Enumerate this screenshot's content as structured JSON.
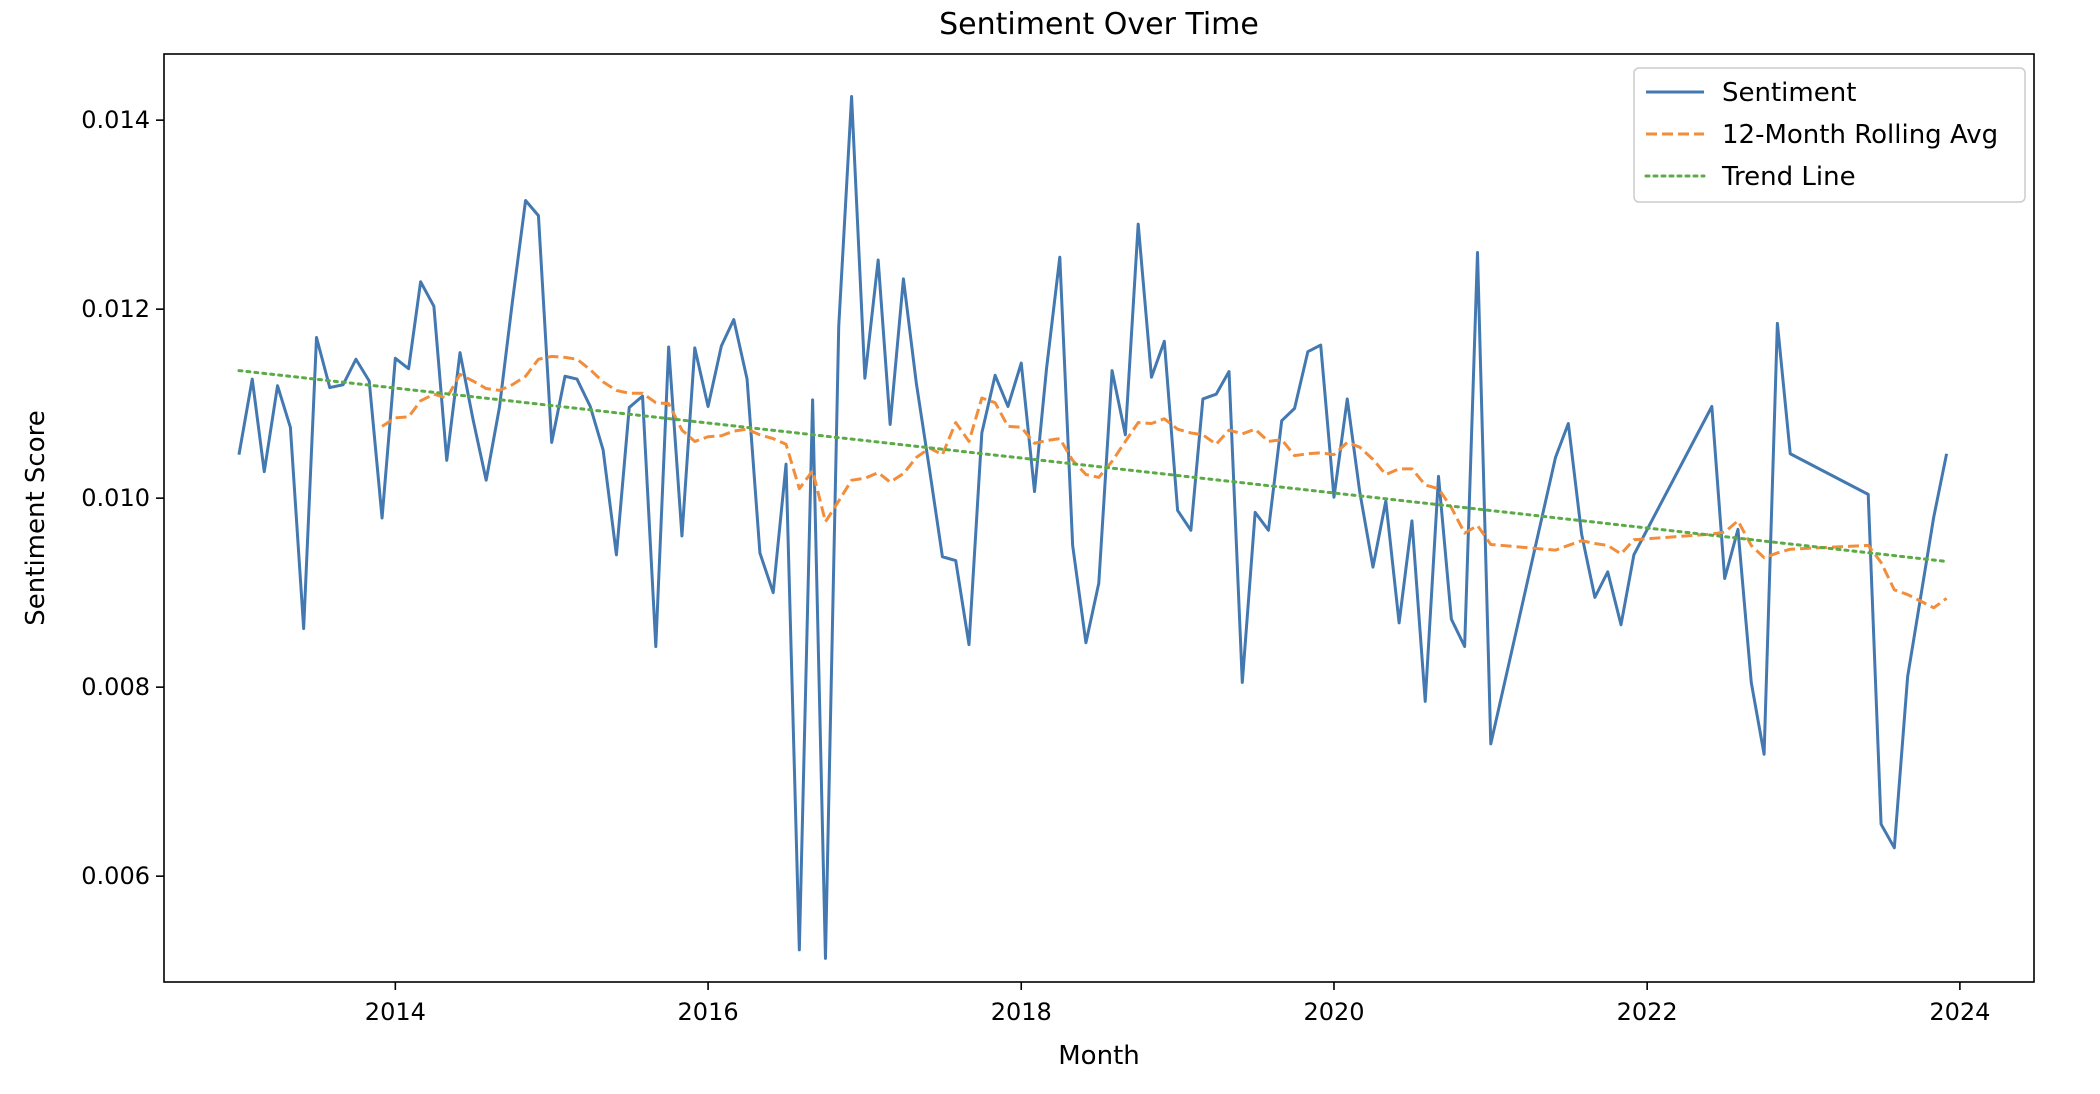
{
  "chart_data": {
    "type": "line",
    "title": "Sentiment Over Time",
    "xlabel": "Month",
    "ylabel": "Sentiment Score",
    "xlim": [
      "2012-07-10",
      "2024-06-22"
    ],
    "ylim": [
      0.00488,
      0.0147
    ],
    "x_ticks": [
      2014,
      2016,
      2018,
      2020,
      2022,
      2024
    ],
    "y_ticks": [
      0.006,
      0.008,
      0.01,
      0.012,
      0.014
    ],
    "y_tick_labels": [
      "0.006",
      "0.008",
      "0.010",
      "0.012",
      "0.014"
    ],
    "grid": false,
    "legend_position": "top-right",
    "colors": {
      "sentiment": "#4379b0",
      "rolling": "#f28e3b",
      "trend": "#5aab45"
    },
    "legend": [
      "Sentiment",
      "12-Month Rolling Avg",
      "Trend Line"
    ],
    "series": [
      {
        "name": "Sentiment",
        "style": "solid",
        "points": [
          [
            "2013-01-01",
            0.01046
          ],
          [
            "2013-02-01",
            0.01126
          ],
          [
            "2013-03-01",
            0.01028
          ],
          [
            "2013-04-01",
            0.01119
          ],
          [
            "2013-05-01",
            0.01075
          ],
          [
            "2013-06-01",
            0.00862
          ],
          [
            "2013-07-01",
            0.0117
          ],
          [
            "2013-08-01",
            0.01117
          ],
          [
            "2013-09-01",
            0.0112
          ],
          [
            "2013-10-01",
            0.01147
          ],
          [
            "2013-11-01",
            0.01124
          ],
          [
            "2013-12-01",
            0.00979
          ],
          [
            "2014-01-01",
            0.01148
          ],
          [
            "2014-02-01",
            0.01137
          ],
          [
            "2014-03-01",
            0.01229
          ],
          [
            "2014-04-01",
            0.01203
          ],
          [
            "2014-05-01",
            0.0104
          ],
          [
            "2014-06-01",
            0.01154
          ],
          [
            "2014-07-01",
            0.01084
          ],
          [
            "2014-08-01",
            0.01019
          ],
          [
            "2014-09-01",
            0.01096
          ],
          [
            "2014-10-01",
            0.01207
          ],
          [
            "2014-11-01",
            0.01315
          ],
          [
            "2014-12-01",
            0.01299
          ],
          [
            "2015-01-01",
            0.01059
          ],
          [
            "2015-02-01",
            0.01129
          ],
          [
            "2015-03-01",
            0.01126
          ],
          [
            "2015-04-01",
            0.01097
          ],
          [
            "2015-05-01",
            0.01051
          ],
          [
            "2015-06-01",
            0.0094
          ],
          [
            "2015-07-01",
            0.01096
          ],
          [
            "2015-08-01",
            0.01108
          ],
          [
            "2015-09-01",
            0.00843
          ],
          [
            "2015-10-01",
            0.0116
          ],
          [
            "2015-11-01",
            0.0096
          ],
          [
            "2015-12-01",
            0.01159
          ],
          [
            "2016-01-01",
            0.01097
          ],
          [
            "2016-02-01",
            0.01161
          ],
          [
            "2016-03-01",
            0.01189
          ],
          [
            "2016-04-01",
            0.01126
          ],
          [
            "2016-05-01",
            0.00942
          ],
          [
            "2016-06-01",
            0.009
          ],
          [
            "2016-07-01",
            0.01036
          ],
          [
            "2016-08-01",
            0.00522
          ],
          [
            "2016-09-01",
            0.01104
          ],
          [
            "2016-10-01",
            0.00513
          ],
          [
            "2016-11-01",
            0.01182
          ],
          [
            "2016-12-01",
            0.01425
          ],
          [
            "2017-01-01",
            0.01127
          ],
          [
            "2017-02-01",
            0.01252
          ],
          [
            "2017-03-01",
            0.01078
          ],
          [
            "2017-04-01",
            0.01232
          ],
          [
            "2017-05-01",
            0.01122
          ],
          [
            "2017-06-01",
            0.0103
          ],
          [
            "2017-07-01",
            0.00938
          ],
          [
            "2017-08-01",
            0.00934
          ],
          [
            "2017-09-01",
            0.00845
          ],
          [
            "2017-10-01",
            0.01069
          ],
          [
            "2017-11-01",
            0.0113
          ],
          [
            "2017-12-01",
            0.01097
          ],
          [
            "2018-01-01",
            0.01143
          ],
          [
            "2018-02-01",
            0.01007
          ],
          [
            "2018-03-01",
            0.01137
          ],
          [
            "2018-04-01",
            0.01255
          ],
          [
            "2018-05-01",
            0.0095
          ],
          [
            "2018-06-01",
            0.00847
          ],
          [
            "2018-07-01",
            0.0091
          ],
          [
            "2018-08-01",
            0.01135
          ],
          [
            "2018-09-01",
            0.01067
          ],
          [
            "2018-10-01",
            0.0129
          ],
          [
            "2018-11-01",
            0.01128
          ],
          [
            "2018-12-01",
            0.01166
          ],
          [
            "2019-01-01",
            0.00987
          ],
          [
            "2019-02-01",
            0.00966
          ],
          [
            "2019-03-01",
            0.01105
          ],
          [
            "2019-04-01",
            0.0111
          ],
          [
            "2019-05-01",
            0.01134
          ],
          [
            "2019-06-01",
            0.00805
          ],
          [
            "2019-07-01",
            0.00985
          ],
          [
            "2019-08-01",
            0.00966
          ],
          [
            "2019-09-01",
            0.01082
          ],
          [
            "2019-10-01",
            0.01095
          ],
          [
            "2019-11-01",
            0.01155
          ],
          [
            "2019-12-01",
            0.01162
          ],
          [
            "2020-01-01",
            0.01001
          ],
          [
            "2020-02-01",
            0.01105
          ],
          [
            "2020-03-01",
            0.01007
          ],
          [
            "2020-04-01",
            0.00927
          ],
          [
            "2020-05-01",
            0.00997
          ],
          [
            "2020-06-01",
            0.00868
          ],
          [
            "2020-07-01",
            0.00976
          ],
          [
            "2020-08-01",
            0.00785
          ],
          [
            "2020-09-01",
            0.01023
          ],
          [
            "2020-10-01",
            0.00872
          ],
          [
            "2020-11-01",
            0.00843
          ],
          [
            "2020-12-01",
            0.0126
          ],
          [
            "2021-01-01",
            0.0074
          ],
          [
            "2021-06-01",
            0.01043
          ],
          [
            "2021-07-01",
            0.01079
          ],
          [
            "2021-08-01",
            0.00962
          ],
          [
            "2021-09-01",
            0.00895
          ],
          [
            "2021-10-01",
            0.00922
          ],
          [
            "2021-11-01",
            0.00866
          ],
          [
            "2021-12-01",
            0.0094
          ],
          [
            "2022-06-01",
            0.01097
          ],
          [
            "2022-07-01",
            0.00915
          ],
          [
            "2022-08-01",
            0.00967
          ],
          [
            "2022-09-01",
            0.00805
          ],
          [
            "2022-10-01",
            0.00729
          ],
          [
            "2022-11-01",
            0.01185
          ],
          [
            "2022-12-01",
            0.01047
          ],
          [
            "2023-06-01",
            0.01004
          ],
          [
            "2023-07-01",
            0.00655
          ],
          [
            "2023-08-01",
            0.0063
          ],
          [
            "2023-09-01",
            0.00811
          ],
          [
            "2023-11-01",
            0.0098
          ],
          [
            "2023-12-01",
            0.01047
          ]
        ]
      },
      {
        "name": "12-Month Rolling Avg",
        "style": "dashed",
        "points": [
          [
            "2013-12-01",
            0.01076
          ],
          [
            "2014-01-01",
            0.01085
          ],
          [
            "2014-02-01",
            0.01086
          ],
          [
            "2014-03-01",
            0.01103
          ],
          [
            "2014-04-01",
            0.0111
          ],
          [
            "2014-05-01",
            0.01106
          ],
          [
            "2014-06-01",
            0.01131
          ],
          [
            "2014-07-01",
            0.01124
          ],
          [
            "2014-08-01",
            0.01116
          ],
          [
            "2014-09-01",
            0.01114
          ],
          [
            "2014-10-01",
            0.0112
          ],
          [
            "2014-11-01",
            0.01129
          ],
          [
            "2014-12-01",
            0.01147
          ],
          [
            "2015-01-01",
            0.0115
          ],
          [
            "2015-02-01",
            0.01149
          ],
          [
            "2015-03-01",
            0.01147
          ],
          [
            "2015-04-01",
            0.01136
          ],
          [
            "2015-05-01",
            0.01123
          ],
          [
            "2015-06-01",
            0.01114
          ],
          [
            "2015-07-01",
            0.01111
          ],
          [
            "2015-08-01",
            0.01111
          ],
          [
            "2015-09-01",
            0.01101
          ],
          [
            "2015-10-01",
            0.011
          ],
          [
            "2015-11-01",
            0.01072
          ],
          [
            "2015-12-01",
            0.0106
          ],
          [
            "2016-01-01",
            0.01065
          ],
          [
            "2016-02-01",
            0.01066
          ],
          [
            "2016-03-01",
            0.01071
          ],
          [
            "2016-04-01",
            0.01073
          ],
          [
            "2016-05-01",
            0.01067
          ],
          [
            "2016-06-01",
            0.01063
          ],
          [
            "2016-07-01",
            0.01057
          ],
          [
            "2016-08-01",
            0.0101
          ],
          [
            "2016-09-01",
            0.01029
          ],
          [
            "2016-10-01",
            0.00975
          ],
          [
            "2016-11-01",
            0.00997
          ],
          [
            "2016-12-01",
            0.01019
          ],
          [
            "2017-01-01",
            0.01021
          ],
          [
            "2017-02-01",
            0.01027
          ],
          [
            "2017-03-01",
            0.01017
          ],
          [
            "2017-04-01",
            0.01026
          ],
          [
            "2017-05-01",
            0.01043
          ],
          [
            "2017-06-01",
            0.01053
          ],
          [
            "2017-07-01",
            0.01046
          ],
          [
            "2017-08-01",
            0.0108
          ],
          [
            "2017-09-01",
            0.0106
          ],
          [
            "2017-10-01",
            0.01106
          ],
          [
            "2017-11-01",
            0.01101
          ],
          [
            "2017-12-01",
            0.01076
          ],
          [
            "2018-01-01",
            0.01075
          ],
          [
            "2018-02-01",
            0.01058
          ],
          [
            "2018-03-01",
            0.01061
          ],
          [
            "2018-04-01",
            0.01063
          ],
          [
            "2018-05-01",
            0.0104
          ],
          [
            "2018-06-01",
            0.01025
          ],
          [
            "2018-07-01",
            0.01022
          ],
          [
            "2018-08-01",
            0.01039
          ],
          [
            "2018-09-01",
            0.0106
          ],
          [
            "2018-10-01",
            0.0108
          ],
          [
            "2018-11-01",
            0.01079
          ],
          [
            "2018-12-01",
            0.01084
          ],
          [
            "2019-01-01",
            0.01073
          ],
          [
            "2019-02-01",
            0.01069
          ],
          [
            "2019-03-01",
            0.01067
          ],
          [
            "2019-04-01",
            0.01057
          ],
          [
            "2019-05-01",
            0.01072
          ],
          [
            "2019-06-01",
            0.01068
          ],
          [
            "2019-07-01",
            0.01073
          ],
          [
            "2019-08-01",
            0.0106
          ],
          [
            "2019-09-01",
            0.01062
          ],
          [
            "2019-10-01",
            0.01045
          ],
          [
            "2019-11-01",
            0.01047
          ],
          [
            "2019-12-01",
            0.01048
          ],
          [
            "2020-01-01",
            0.01046
          ],
          [
            "2020-02-01",
            0.01059
          ],
          [
            "2020-03-01",
            0.01054
          ],
          [
            "2020-04-01",
            0.01041
          ],
          [
            "2020-05-01",
            0.01025
          ],
          [
            "2020-06-01",
            0.01031
          ],
          [
            "2020-07-01",
            0.01031
          ],
          [
            "2020-08-01",
            0.01014
          ],
          [
            "2020-09-01",
            0.0101
          ],
          [
            "2020-10-01",
            0.0099
          ],
          [
            "2020-11-01",
            0.00963
          ],
          [
            "2020-12-01",
            0.00971
          ],
          [
            "2021-01-01",
            0.00951
          ],
          [
            "2021-06-01",
            0.00945
          ],
          [
            "2021-07-01",
            0.0095
          ],
          [
            "2021-08-01",
            0.00955
          ],
          [
            "2021-09-01",
            0.00952
          ],
          [
            "2021-10-01",
            0.0095
          ],
          [
            "2021-11-01",
            0.00941
          ],
          [
            "2021-12-01",
            0.00956
          ],
          [
            "2022-06-01",
            0.00962
          ],
          [
            "2022-07-01",
            0.00964
          ],
          [
            "2022-08-01",
            0.00976
          ],
          [
            "2022-09-01",
            0.0095
          ],
          [
            "2022-10-01",
            0.00937
          ],
          [
            "2022-11-01",
            0.00942
          ],
          [
            "2022-12-01",
            0.00946
          ],
          [
            "2023-06-01",
            0.0095
          ],
          [
            "2023-07-01",
            0.00932
          ],
          [
            "2023-08-01",
            0.00903
          ],
          [
            "2023-09-01",
            0.00898
          ],
          [
            "2023-11-01",
            0.00884
          ],
          [
            "2023-12-01",
            0.00894
          ]
        ]
      },
      {
        "name": "Trend Line",
        "style": "dotted",
        "points": [
          [
            "2013-01-01",
            0.01135
          ],
          [
            "2023-12-01",
            0.00933
          ]
        ]
      }
    ]
  }
}
